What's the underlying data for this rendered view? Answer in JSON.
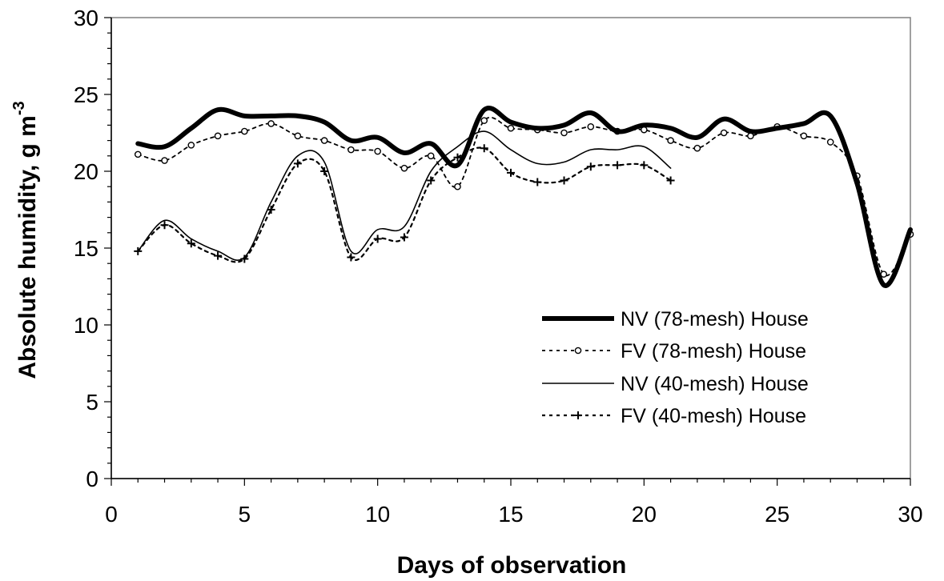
{
  "chart_data": {
    "type": "line",
    "xlabel": "Days of observation",
    "ylabel": "Absolute humidity, g m",
    "ylabel_sup": "-3",
    "xlim": [
      0,
      30
    ],
    "ylim": [
      0,
      30
    ],
    "x_ticks": [
      0,
      5,
      10,
      15,
      20,
      25,
      30
    ],
    "y_ticks": [
      0,
      5,
      10,
      15,
      20,
      25,
      30
    ],
    "grid": false,
    "legend_position": "lower-right",
    "series": [
      {
        "name": "NV (78-mesh) House",
        "style": "thick-solid",
        "color": "#000000",
        "x": [
          1,
          2,
          3,
          4,
          5,
          6,
          7,
          8,
          9,
          10,
          11,
          12,
          13,
          14,
          15,
          16,
          17,
          18,
          19,
          20,
          21,
          22,
          23,
          24,
          25,
          26,
          27,
          28,
          29,
          30
        ],
        "y": [
          21.8,
          21.6,
          22.8,
          24.0,
          23.6,
          23.6,
          23.6,
          23.2,
          22.0,
          22.2,
          21.2,
          21.8,
          20.4,
          24.0,
          23.2,
          22.8,
          23.0,
          23.8,
          22.6,
          23.0,
          22.8,
          22.2,
          23.4,
          22.6,
          22.8,
          23.1,
          23.6,
          19.2,
          12.6,
          16.2
        ]
      },
      {
        "name": "FV (78-mesh) House",
        "style": "dotted-circle",
        "color": "#000000",
        "x": [
          1,
          2,
          3,
          4,
          5,
          6,
          7,
          8,
          9,
          10,
          11,
          12,
          13,
          14,
          15,
          16,
          17,
          18,
          19,
          20,
          21,
          22,
          23,
          24,
          25,
          26,
          27,
          28,
          29,
          30
        ],
        "y": [
          21.1,
          20.7,
          21.7,
          22.3,
          22.6,
          23.1,
          22.3,
          22.0,
          21.4,
          21.3,
          20.2,
          21.0,
          19.0,
          23.3,
          22.8,
          22.7,
          22.5,
          22.9,
          22.6,
          22.7,
          22.0,
          21.5,
          22.5,
          22.3,
          22.9,
          22.3,
          21.9,
          19.7,
          13.3,
          15.9
        ]
      },
      {
        "name": "NV (40-mesh) House",
        "style": "thin-solid",
        "color": "#000000",
        "x": [
          1,
          2,
          3,
          4,
          5,
          6,
          7,
          8,
          9,
          10,
          11,
          12,
          13,
          14,
          15,
          16,
          17,
          18,
          19,
          20,
          21
        ],
        "y": [
          14.8,
          16.8,
          15.6,
          14.8,
          14.4,
          18.0,
          21.0,
          20.6,
          14.8,
          16.2,
          16.4,
          20.0,
          21.6,
          22.6,
          21.4,
          20.5,
          20.6,
          21.4,
          21.4,
          21.6,
          20.2
        ]
      },
      {
        "name": "FV (40-mesh) House",
        "style": "dotted-plus",
        "color": "#000000",
        "x": [
          1,
          2,
          3,
          4,
          5,
          6,
          7,
          8,
          9,
          10,
          11,
          12,
          13,
          14,
          15,
          16,
          17,
          18,
          19,
          20,
          21
        ],
        "y": [
          14.8,
          16.5,
          15.3,
          14.5,
          14.3,
          17.5,
          20.5,
          20.0,
          14.4,
          15.6,
          15.7,
          19.4,
          20.9,
          21.5,
          19.9,
          19.3,
          19.4,
          20.3,
          20.4,
          20.4,
          19.4
        ]
      }
    ]
  }
}
